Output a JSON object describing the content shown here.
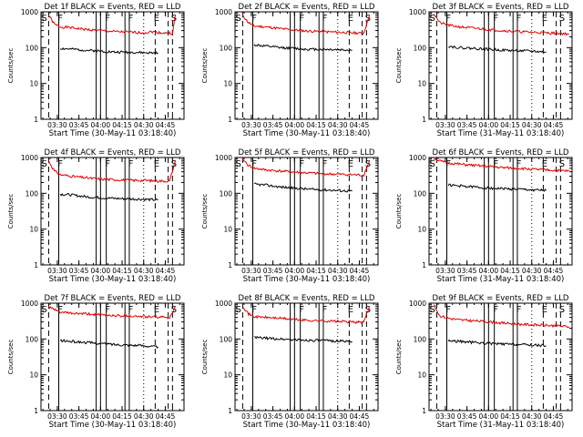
{
  "figure": {
    "colors": {
      "events": "#000000",
      "lld": "#e00000",
      "axes": "#000000",
      "background": "#ffffff"
    }
  },
  "chart_data": [
    {
      "type": "line",
      "title": "Det 1f BLACK = Events, RED = LLD",
      "ylabel": "Counts/sec",
      "xlabel": "Start Time (30-May-11 03:18:40)",
      "xlim": [
        "03:18:40",
        "04:58"
      ],
      "ylim": [
        1,
        1000
      ],
      "yscale": "log",
      "xticks": [
        "03:30",
        "03:45",
        "04:00",
        "04:15",
        "04:30",
        "04:45"
      ],
      "yticks": [
        "1",
        "10",
        "100",
        "1000"
      ],
      "letters": [
        "S",
        "F",
        "F",
        "F",
        "E",
        "S"
      ],
      "series": [
        {
          "color": "#e00000",
          "x": [
            "03:24",
            "03:28",
            "03:32",
            "03:40",
            "03:50",
            "04:00",
            "04:10",
            "04:20",
            "04:30",
            "04:36",
            "04:42",
            "04:50",
            "04:52"
          ],
          "y": [
            800,
            450,
            380,
            360,
            320,
            300,
            280,
            270,
            260,
            280,
            260,
            250,
            800
          ]
        },
        {
          "color": "#000000",
          "x": [
            "03:32",
            "03:40",
            "03:50",
            "04:00",
            "04:10",
            "04:20",
            "04:30",
            "04:40"
          ],
          "y": [
            95,
            90,
            85,
            80,
            75,
            75,
            72,
            70
          ]
        }
      ]
    },
    {
      "type": "line",
      "title": "Det 2f BLACK = Events, RED = LLD",
      "ylabel": "Counts/sec",
      "xlabel": "Start Time (30-May-11 03:18:40)",
      "xlim": [
        "03:18:40",
        "04:58"
      ],
      "ylim": [
        1,
        1000
      ],
      "yscale": "log",
      "xticks": [
        "03:30",
        "03:45",
        "04:00",
        "04:15",
        "04:30",
        "04:45"
      ],
      "yticks": [
        "1",
        "10",
        "100",
        "1000"
      ],
      "letters": [
        "S",
        "F",
        "F",
        "F",
        "E",
        "S"
      ],
      "series": [
        {
          "color": "#e00000",
          "x": [
            "03:24",
            "03:28",
            "03:32",
            "03:40",
            "03:50",
            "04:00",
            "04:10",
            "04:20",
            "04:30",
            "04:40",
            "04:48",
            "04:52"
          ],
          "y": [
            800,
            500,
            400,
            380,
            340,
            310,
            290,
            280,
            270,
            260,
            250,
            800
          ]
        },
        {
          "color": "#000000",
          "x": [
            "03:32",
            "03:40",
            "03:50",
            "04:00",
            "04:10",
            "04:20",
            "04:30",
            "04:40"
          ],
          "y": [
            120,
            110,
            100,
            95,
            90,
            90,
            88,
            85
          ]
        }
      ]
    },
    {
      "type": "line",
      "title": "Det 3f BLACK = Events, RED = LLD",
      "ylabel": "Counts/sec",
      "xlabel": "Start Time (31-May-11 03:18:40)",
      "xlim": [
        "03:18:40",
        "04:58"
      ],
      "ylim": [
        1,
        1000
      ],
      "yscale": "log",
      "xticks": [
        "03:30",
        "03:45",
        "04:00",
        "04:15",
        "04:30",
        "04:45"
      ],
      "yticks": [
        "1",
        "10",
        "100",
        "1000"
      ],
      "letters": [
        "S",
        "F",
        "F",
        "F",
        "E",
        "S"
      ],
      "series": [
        {
          "color": "#e00000",
          "x": [
            "03:22",
            "03:26",
            "03:32",
            "03:40",
            "03:50",
            "04:00",
            "04:10",
            "04:20",
            "04:30",
            "04:40",
            "04:50",
            "04:56"
          ],
          "y": [
            900,
            500,
            420,
            380,
            350,
            320,
            300,
            280,
            270,
            260,
            250,
            240
          ]
        },
        {
          "color": "#000000",
          "x": [
            "03:32",
            "03:40",
            "03:50",
            "04:00",
            "04:10",
            "04:20",
            "04:30",
            "04:40"
          ],
          "y": [
            110,
            100,
            95,
            90,
            85,
            82,
            80,
            75
          ]
        }
      ]
    },
    {
      "type": "line",
      "title": "Det 4f BLACK = Events, RED = LLD",
      "ylabel": "Counts/sec",
      "xlabel": "Start Time (30-May-11 03:18:40)",
      "xlim": [
        "03:18:40",
        "04:58"
      ],
      "ylim": [
        1,
        1000
      ],
      "yscale": "log",
      "xticks": [
        "03:30",
        "03:45",
        "04:00",
        "04:15",
        "04:30",
        "04:45"
      ],
      "yticks": [
        "1",
        "10",
        "100",
        "1000"
      ],
      "letters": [
        "S",
        "F",
        "F",
        "F",
        "E",
        "S"
      ],
      "series": [
        {
          "color": "#e00000",
          "x": [
            "03:24",
            "03:28",
            "03:32",
            "03:40",
            "03:50",
            "04:00",
            "04:10",
            "04:20",
            "04:30",
            "04:40",
            "04:48",
            "04:52"
          ],
          "y": [
            800,
            420,
            330,
            300,
            270,
            250,
            240,
            230,
            230,
            220,
            220,
            800
          ]
        },
        {
          "color": "#000000",
          "x": [
            "03:32",
            "03:40",
            "03:50",
            "04:00",
            "04:10",
            "04:20",
            "04:30",
            "04:40"
          ],
          "y": [
            95,
            90,
            80,
            75,
            72,
            70,
            68,
            65
          ]
        }
      ]
    },
    {
      "type": "line",
      "title": "Det 5f BLACK = Events, RED = LLD",
      "ylabel": "Counts/sec",
      "xlabel": "Start Time (30-May-11 03:18:40)",
      "xlim": [
        "03:18:40",
        "04:58"
      ],
      "ylim": [
        1,
        1000
      ],
      "yscale": "log",
      "xticks": [
        "03:30",
        "03:45",
        "04:00",
        "04:15",
        "04:30",
        "04:45"
      ],
      "yticks": [
        "1",
        "10",
        "100",
        "1000"
      ],
      "letters": [
        "S",
        "F",
        "F",
        "F",
        "E",
        "S"
      ],
      "series": [
        {
          "color": "#e00000",
          "x": [
            "03:24",
            "03:28",
            "03:32",
            "03:40",
            "03:50",
            "04:00",
            "04:10",
            "04:20",
            "04:30",
            "04:40",
            "04:48",
            "04:52"
          ],
          "y": [
            900,
            600,
            500,
            450,
            420,
            390,
            370,
            350,
            340,
            330,
            320,
            800
          ]
        },
        {
          "color": "#000000",
          "x": [
            "03:32",
            "03:40",
            "03:50",
            "04:00",
            "04:10",
            "04:20",
            "04:30",
            "04:40"
          ],
          "y": [
            180,
            170,
            150,
            140,
            130,
            125,
            120,
            115
          ]
        }
      ]
    },
    {
      "type": "line",
      "title": "Det 6f BLACK = Events, RED = LLD",
      "ylabel": "Counts/sec",
      "xlabel": "Start Time (31-May-11 03:18:40)",
      "xlim": [
        "03:18:40",
        "04:58"
      ],
      "ylim": [
        1,
        1000
      ],
      "yscale": "log",
      "xticks": [
        "03:30",
        "03:45",
        "04:00",
        "04:15",
        "04:30",
        "04:45"
      ],
      "yticks": [
        "1",
        "10",
        "100",
        "1000"
      ],
      "letters": [
        "S",
        "F",
        "F",
        "F",
        "E",
        "S"
      ],
      "series": [
        {
          "color": "#e00000",
          "x": [
            "03:22",
            "03:26",
            "03:32",
            "03:40",
            "03:50",
            "04:00",
            "04:10",
            "04:20",
            "04:30",
            "04:40",
            "04:50",
            "04:56"
          ],
          "y": [
            950,
            800,
            700,
            650,
            600,
            560,
            520,
            500,
            470,
            450,
            430,
            420
          ]
        },
        {
          "color": "#000000",
          "x": [
            "03:32",
            "03:40",
            "03:50",
            "04:00",
            "04:10",
            "04:20",
            "04:30",
            "04:40"
          ],
          "y": [
            170,
            160,
            150,
            140,
            135,
            130,
            125,
            120
          ]
        }
      ]
    },
    {
      "type": "line",
      "title": "Det 7f BLACK = Events, RED = LLD",
      "ylabel": "Counts/sec",
      "xlabel": "Start Time (30-May-11 03:18:40)",
      "xlim": [
        "03:18:40",
        "04:58"
      ],
      "ylim": [
        1,
        1000
      ],
      "yscale": "log",
      "xticks": [
        "03:30",
        "03:45",
        "04:00",
        "04:15",
        "04:30",
        "04:45"
      ],
      "yticks": [
        "1",
        "10",
        "100",
        "1000"
      ],
      "letters": [
        "S",
        "F",
        "F",
        "F",
        "E",
        "S"
      ],
      "series": [
        {
          "color": "#e00000",
          "x": [
            "03:24",
            "03:28",
            "03:32",
            "03:40",
            "03:50",
            "04:00",
            "04:10",
            "04:20",
            "04:30",
            "04:40",
            "04:48",
            "04:52"
          ],
          "y": [
            800,
            650,
            560,
            520,
            500,
            470,
            450,
            440,
            420,
            410,
            400,
            800
          ]
        },
        {
          "color": "#000000",
          "x": [
            "03:32",
            "03:40",
            "03:50",
            "04:00",
            "04:10",
            "04:20",
            "04:30",
            "04:40"
          ],
          "y": [
            90,
            85,
            80,
            75,
            70,
            68,
            65,
            60
          ]
        }
      ]
    },
    {
      "type": "line",
      "title": "Det 8f BLACK = Events, RED = LLD",
      "ylabel": "Counts/sec",
      "xlabel": "Start Time (30-May-11 03:18:40)",
      "xlim": [
        "03:18:40",
        "04:58"
      ],
      "ylim": [
        1,
        1000
      ],
      "yscale": "log",
      "xticks": [
        "03:30",
        "03:45",
        "04:00",
        "04:15",
        "04:30",
        "04:45"
      ],
      "yticks": [
        "1",
        "10",
        "100",
        "1000"
      ],
      "letters": [
        "S",
        "F",
        "F",
        "F",
        "E",
        "S"
      ],
      "series": [
        {
          "color": "#e00000",
          "x": [
            "03:24",
            "03:28",
            "03:32",
            "03:40",
            "03:50",
            "04:00",
            "04:10",
            "04:20",
            "04:30",
            "04:40",
            "04:48",
            "04:52"
          ],
          "y": [
            850,
            500,
            420,
            400,
            380,
            350,
            330,
            320,
            310,
            300,
            290,
            800
          ]
        },
        {
          "color": "#000000",
          "x": [
            "03:32",
            "03:40",
            "03:50",
            "04:00",
            "04:10",
            "04:20",
            "04:30",
            "04:40"
          ],
          "y": [
            110,
            105,
            100,
            95,
            92,
            90,
            88,
            85
          ]
        }
      ]
    },
    {
      "type": "line",
      "title": "Det 9f BLACK = Events, RED = LLD",
      "ylabel": "Counts/sec",
      "xlabel": "Start Time (31-May-11 03:18:40)",
      "xlim": [
        "03:18:40",
        "04:58"
      ],
      "ylim": [
        1,
        1000
      ],
      "yscale": "log",
      "xticks": [
        "03:30",
        "03:45",
        "04:00",
        "04:15",
        "04:30",
        "04:45"
      ],
      "yticks": [
        "1",
        "10",
        "100",
        "1000"
      ],
      "letters": [
        "S",
        "F",
        "F",
        "F",
        "E",
        "S"
      ],
      "series": [
        {
          "color": "#e00000",
          "x": [
            "03:22",
            "03:26",
            "03:32",
            "03:40",
            "03:50",
            "04:00",
            "04:10",
            "04:20",
            "04:30",
            "04:40",
            "04:50",
            "04:56"
          ],
          "y": [
            900,
            450,
            380,
            340,
            320,
            300,
            280,
            260,
            250,
            240,
            230,
            220
          ]
        },
        {
          "color": "#000000",
          "x": [
            "03:32",
            "03:40",
            "03:50",
            "04:00",
            "04:10",
            "04:20",
            "04:30",
            "04:40"
          ],
          "y": [
            90,
            85,
            80,
            75,
            72,
            70,
            68,
            65
          ]
        }
      ]
    }
  ]
}
